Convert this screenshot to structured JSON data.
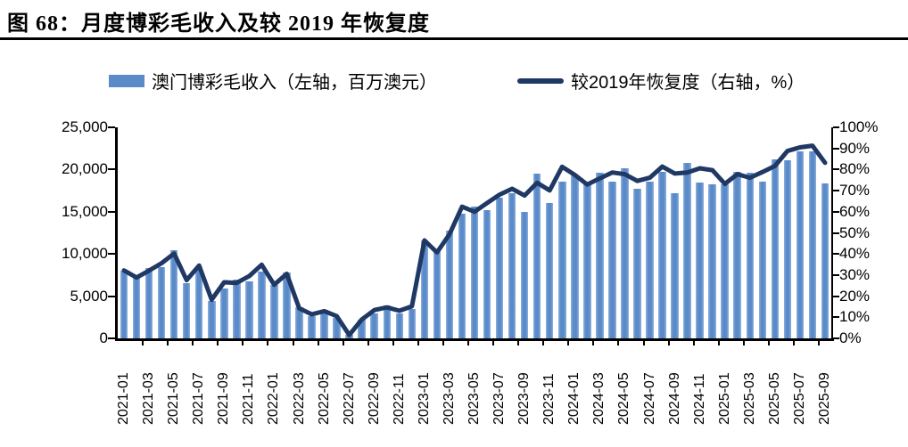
{
  "page": {
    "title": "图 68：月度博彩毛收入及较 2019 年恢复度"
  },
  "legend": {
    "bars": {
      "label": "澳门博彩毛收入（左轴，百万澳元）"
    },
    "line": {
      "label": "较2019年恢复度（右轴，%）"
    }
  },
  "colors": {
    "bar": "#5B8AC9",
    "bar_edge": "#8FB3DE",
    "line": "#1F3864",
    "axis": "#000000"
  },
  "chart_data": {
    "type": "combo-bar-line",
    "title": "图 68：月度博彩毛收入及较 2019 年恢复度",
    "grid": false,
    "legend_position": "top",
    "x_tick_interval": 2,
    "categories": [
      "2021-01",
      "2021-02",
      "2021-03",
      "2021-04",
      "2021-05",
      "2021-06",
      "2021-07",
      "2021-08",
      "2021-09",
      "2021-10",
      "2021-11",
      "2021-12",
      "2022-01",
      "2022-02",
      "2022-03",
      "2022-04",
      "2022-05",
      "2022-06",
      "2022-07",
      "2022-08",
      "2022-09",
      "2022-10",
      "2022-11",
      "2022-12",
      "2023-01",
      "2023-02",
      "2023-03",
      "2023-04",
      "2023-05",
      "2023-06",
      "2023-07",
      "2023-08",
      "2023-09",
      "2023-10",
      "2023-11",
      "2023-12",
      "2024-01",
      "2024-02",
      "2024-03",
      "2024-04",
      "2024-05",
      "2024-06",
      "2024-07",
      "2024-08",
      "2024-09",
      "2024-10",
      "2024-11",
      "2024-12",
      "2025-01",
      "2025-02",
      "2025-03",
      "2025-04",
      "2025-05",
      "2025-06",
      "2025-07",
      "2025-08",
      "2025-09"
    ],
    "series": [
      {
        "name": "澳门博彩毛收入",
        "type": "bar",
        "axis": "left",
        "unit": "百万澳元",
        "values": [
          8025,
          7312,
          8307,
          8401,
          10445,
          6537,
          8440,
          4441,
          5879,
          6954,
          6749,
          7963,
          6344,
          7757,
          3672,
          2682,
          3344,
          2479,
          398,
          2189,
          2962,
          3895,
          3001,
          3482,
          11585,
          10324,
          12738,
          14722,
          15565,
          15210,
          16662,
          17212,
          14942,
          19501,
          16043,
          18568,
          19337,
          18490,
          19590,
          18549,
          20188,
          17691,
          18607,
          19754,
          17247,
          20793,
          18440,
          18203,
          18251,
          19744,
          19656,
          18586,
          21193,
          21060,
          22125,
          22162,
          18365
        ]
      },
      {
        "name": "较2019年恢复度",
        "type": "line",
        "axis": "right",
        "unit": "%",
        "values": [
          32.2,
          28.8,
          32.1,
          35.6,
          40.2,
          27.6,
          34.5,
          18.3,
          26.6,
          26.3,
          29.5,
          34.9,
          25.4,
          30.6,
          14.2,
          11.4,
          12.9,
          10.5,
          1.6,
          9.0,
          13.4,
          14.7,
          13.1,
          15.2,
          46.4,
          40.7,
          49.3,
          62.4,
          60.0,
          64.1,
          68.1,
          70.9,
          67.7,
          73.7,
          70.1,
          81.3,
          77.5,
          72.9,
          75.8,
          78.6,
          77.8,
          74.6,
          76.1,
          81.4,
          78.1,
          78.6,
          80.6,
          79.7,
          73.2,
          77.8,
          76.1,
          78.8,
          81.7,
          88.8,
          90.5,
          91.3,
          83.2
        ]
      }
    ],
    "left_axis": {
      "min": 0,
      "max": 25000,
      "tick_labels": [
        "25,000",
        "20,000",
        "15,000",
        "10,000",
        "5,000",
        "0"
      ]
    },
    "right_axis": {
      "min": 0,
      "max": 100,
      "tick_labels": [
        "100%",
        "90%",
        "80%",
        "70%",
        "60%",
        "50%",
        "40%",
        "30%",
        "20%",
        "10%",
        "0%"
      ]
    }
  }
}
